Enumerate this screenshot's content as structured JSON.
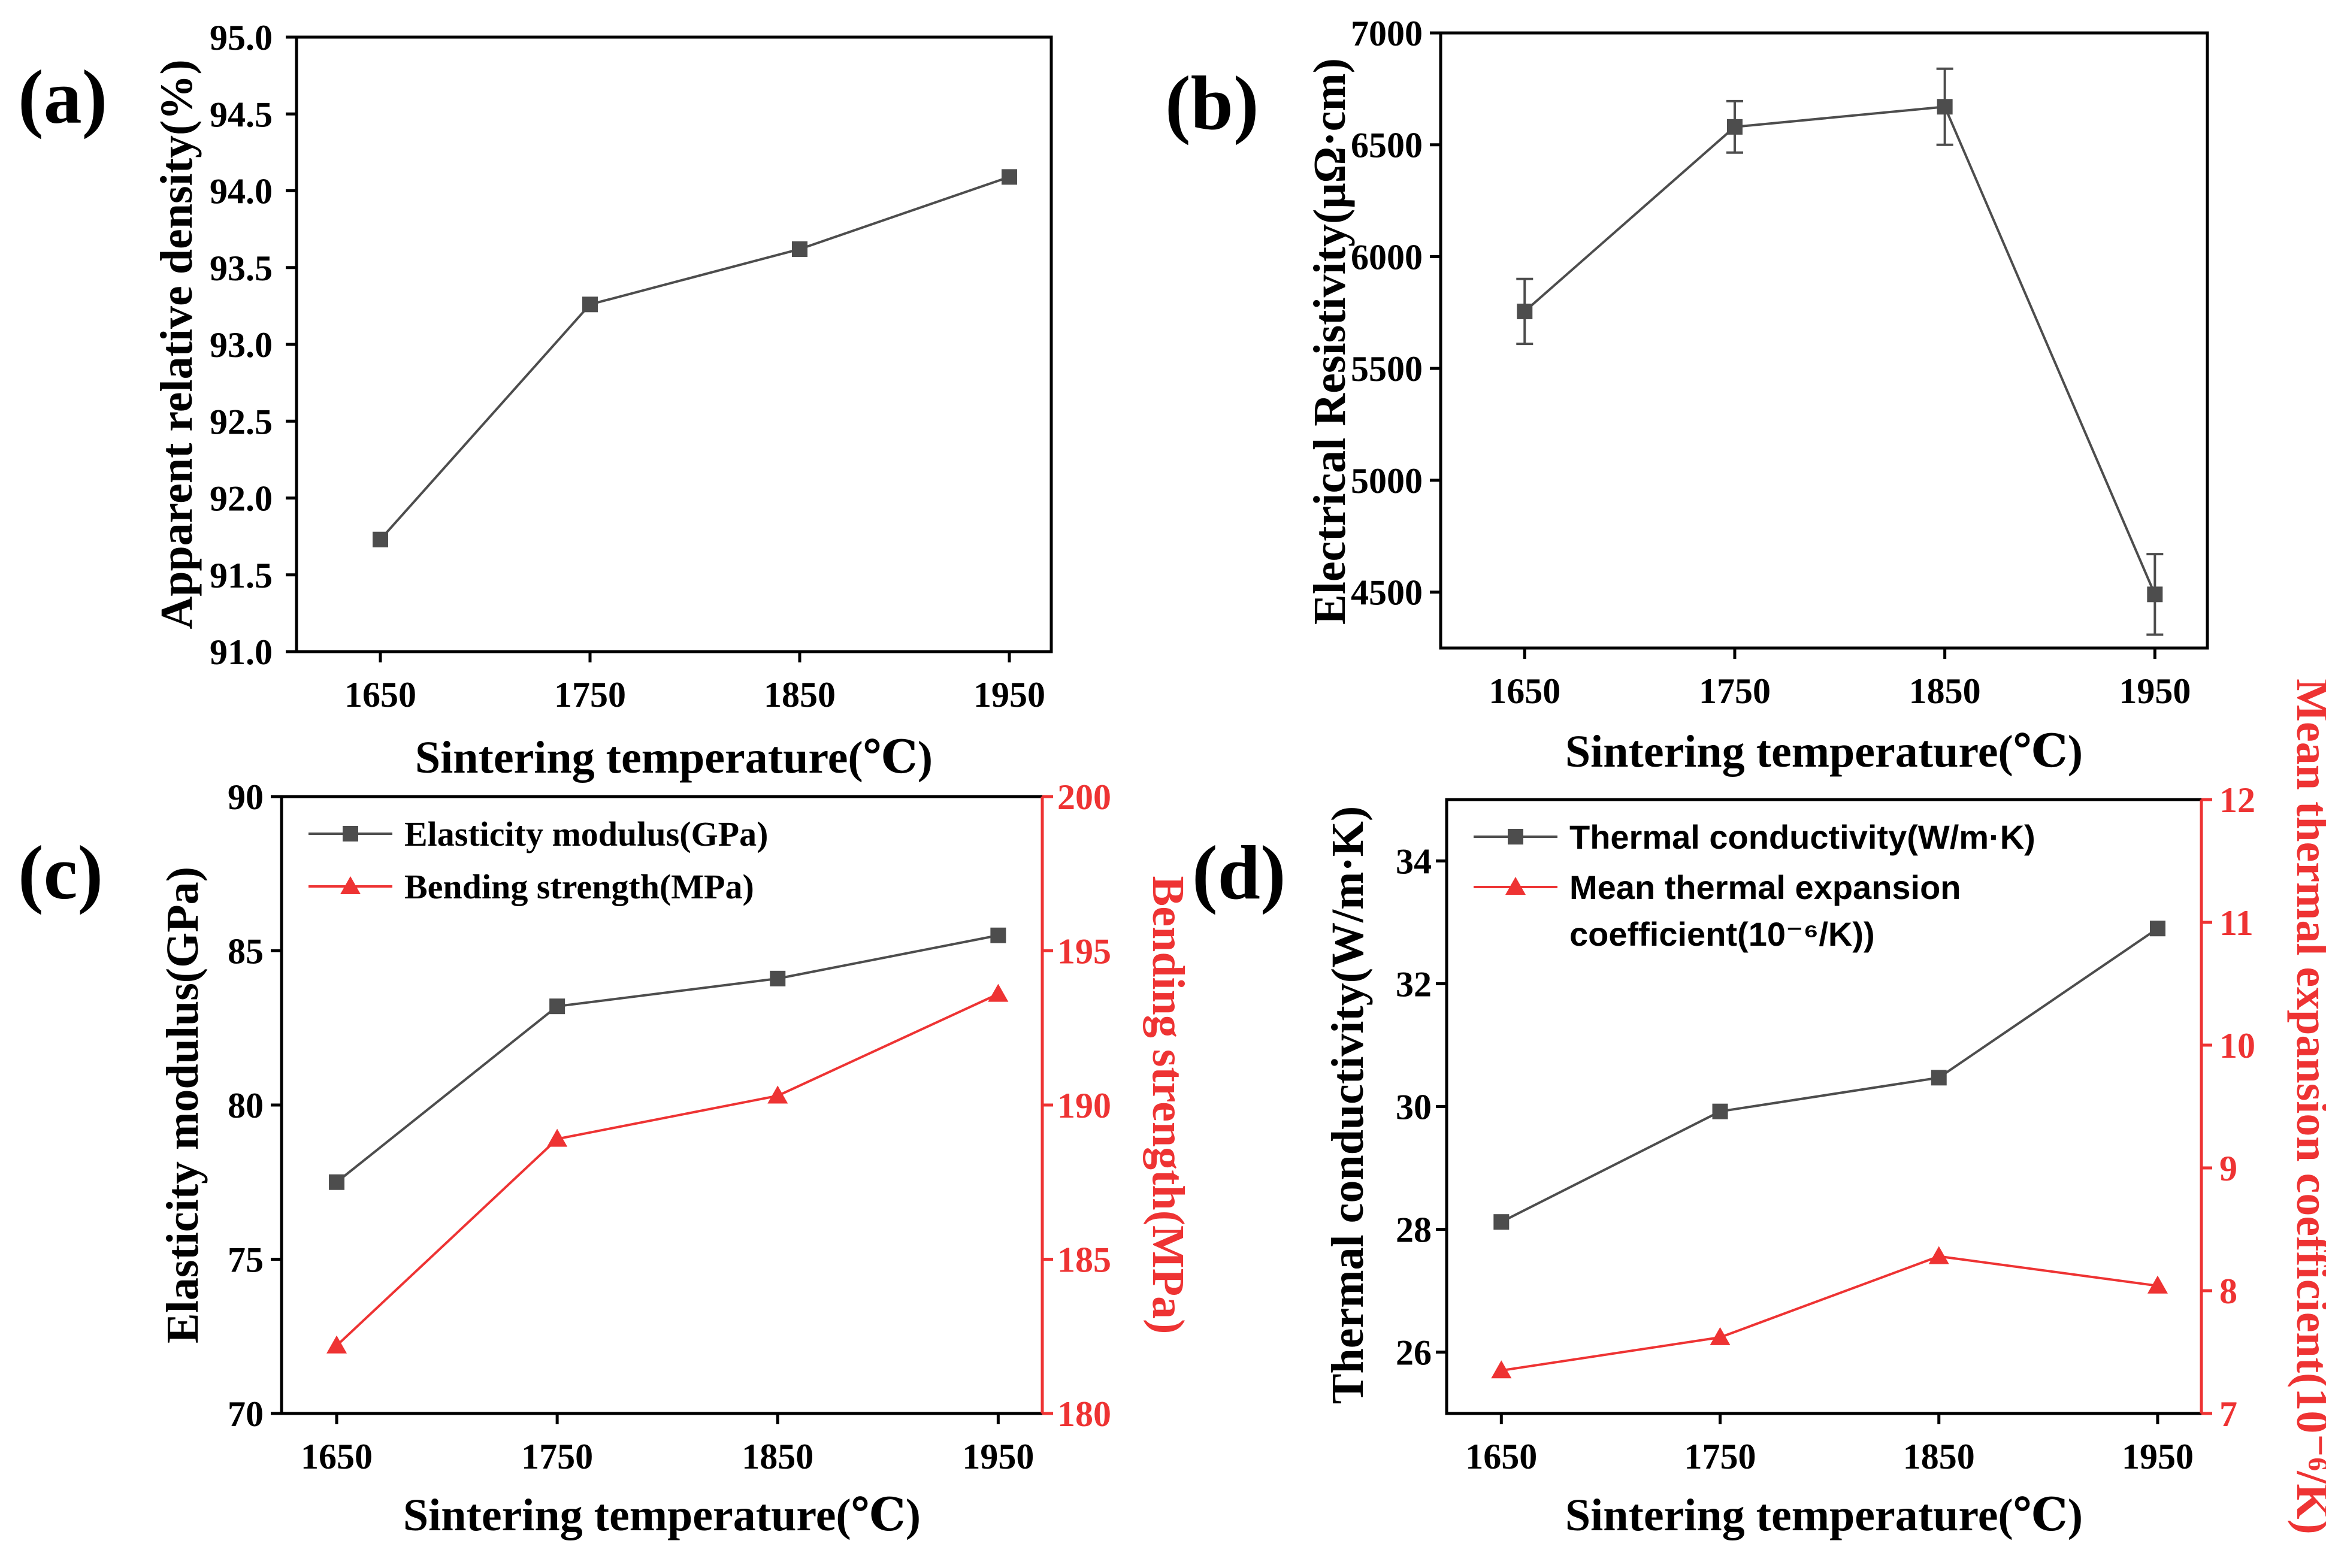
{
  "chart_data": [
    {
      "type": "line",
      "panel_label": "(a)",
      "title": "",
      "xlabel": "Sintering temperature(℃)",
      "ylabel": "Apparent relative density(%)",
      "x": [
        1650,
        1750,
        1850,
        1950
      ],
      "x_ticks": [
        "1650",
        "1750",
        "1850",
        "1950"
      ],
      "xlim": [
        1610,
        1970
      ],
      "ylim": [
        91.0,
        95.0
      ],
      "y_ticks": [
        "91.0",
        "91.5",
        "92.0",
        "92.5",
        "93.0",
        "93.5",
        "94.0",
        "94.5",
        "95.0"
      ],
      "series": [
        {
          "name": "Apparent relative density",
          "axis": "left",
          "values": [
            91.73,
            93.26,
            93.62,
            94.09
          ],
          "marker": "square",
          "color": "#4d4d4d"
        }
      ]
    },
    {
      "type": "line",
      "panel_label": "(b)",
      "title": "",
      "xlabel": "Sintering temperature(℃)",
      "ylabel": "Electrical Resistivity(μΩ·cm)",
      "x": [
        1650,
        1750,
        1850,
        1950
      ],
      "x_ticks": [
        "1650",
        "1750",
        "1850",
        "1950"
      ],
      "xlim": [
        1610,
        1975
      ],
      "ylim": [
        4250,
        7000
      ],
      "y_ticks": [
        "4500",
        "5000",
        "5500",
        "6000",
        "6500",
        "7000"
      ],
      "series": [
        {
          "name": "Electrical Resistivity",
          "axis": "left",
          "values": [
            5755,
            6580,
            6670,
            4490
          ],
          "errors": [
            145,
            115,
            170,
            180
          ],
          "marker": "square",
          "color": "#4d4d4d"
        }
      ]
    },
    {
      "type": "line",
      "panel_label": "(c)",
      "title": "",
      "xlabel": "Sintering temperature(℃)",
      "ylabel": "Elasticity modulus(GPa)",
      "ylabel_right": "Bending strength(MPa)",
      "x": [
        1650,
        1750,
        1850,
        1950
      ],
      "x_ticks": [
        "1650",
        "1750",
        "1850",
        "1950"
      ],
      "xlim": [
        1625,
        1970
      ],
      "ylim": [
        70,
        90
      ],
      "y_ticks": [
        "70",
        "75",
        "80",
        "85",
        "90"
      ],
      "ylim_right": [
        180,
        200
      ],
      "y_ticks_right": [
        "180",
        "185",
        "190",
        "195",
        "200"
      ],
      "legend_position": "top-left",
      "series": [
        {
          "name": "Elasticity modulus(GPa)",
          "axis": "left",
          "values": [
            77.5,
            83.2,
            84.1,
            85.5
          ],
          "marker": "square",
          "color": "#4d4d4d"
        },
        {
          "name": "Bending strength(MPa)",
          "axis": "right",
          "values": [
            182.2,
            188.9,
            190.3,
            193.6
          ],
          "marker": "triangle",
          "color": "#ee3333"
        }
      ]
    },
    {
      "type": "line",
      "panel_label": "(d)",
      "title": "",
      "xlabel": "Sintering temperature(℃)",
      "ylabel": "Thermal conductivity(W/m·K)",
      "ylabel_right": "Mean thermal expansion coefficient(10⁻⁶/K)",
      "x": [
        1650,
        1750,
        1850,
        1950
      ],
      "x_ticks": [
        "1650",
        "1750",
        "1850",
        "1950"
      ],
      "xlim": [
        1625,
        1970
      ],
      "ylim": [
        25,
        35
      ],
      "y_ticks": [
        "26",
        "28",
        "30",
        "32",
        "34"
      ],
      "ylim_right": [
        7,
        12
      ],
      "y_ticks_right": [
        "7",
        "8",
        "9",
        "10",
        "11",
        "12"
      ],
      "legend_position": "top-left",
      "series": [
        {
          "name": "Thermal conductivity(W/m·K)",
          "axis": "left",
          "values": [
            28.12,
            29.92,
            30.47,
            32.9
          ],
          "marker": "square",
          "color": "#4d4d4d"
        },
        {
          "name": "Mean thermal expansion coefficient(10⁻⁶/K))",
          "legend_lines": [
            "Mean thermal expansion",
            "coefficient(10⁻⁶/K))"
          ],
          "axis": "right",
          "values": [
            7.35,
            7.62,
            8.28,
            8.04
          ],
          "marker": "triangle",
          "color": "#ee3333"
        }
      ]
    }
  ]
}
